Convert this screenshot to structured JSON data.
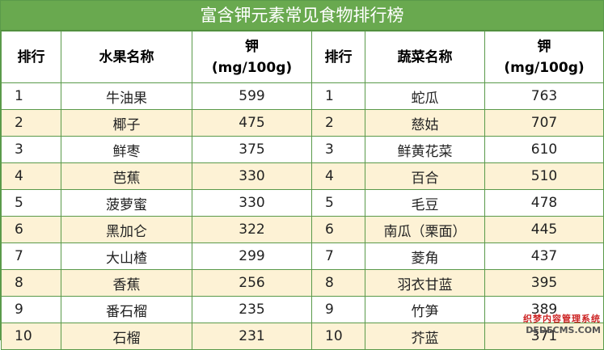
{
  "title": "富含钾元素常见食物排行榜",
  "headers": {
    "rank": "排行",
    "fruit_name": "水果名称",
    "potassium_line1": "钾",
    "potassium_line2": "(mg/100g)",
    "rank2": "排行",
    "veg_name": "蔬菜名称",
    "potassium2_line1": "钾",
    "potassium2_line2": "(mg/100g)"
  },
  "rows": [
    {
      "rank": "1",
      "fruit": "牛油果",
      "fruit_k": "599",
      "rank2": "1",
      "veg": "蛇瓜",
      "veg_k": "763"
    },
    {
      "rank": "2",
      "fruit": "椰子",
      "fruit_k": "475",
      "rank2": "2",
      "veg": "慈姑",
      "veg_k": "707"
    },
    {
      "rank": "3",
      "fruit": "鲜枣",
      "fruit_k": "375",
      "rank2": "3",
      "veg": "鲜黄花菜",
      "veg_k": "610"
    },
    {
      "rank": "4",
      "fruit": "芭蕉",
      "fruit_k": "330",
      "rank2": "4",
      "veg": "百合",
      "veg_k": "510"
    },
    {
      "rank": "5",
      "fruit": "菠萝蜜",
      "fruit_k": "330",
      "rank2": "5",
      "veg": "毛豆",
      "veg_k": "478"
    },
    {
      "rank": "6",
      "fruit": "黑加仑",
      "fruit_k": "322",
      "rank2": "6",
      "veg": "南瓜（栗面）",
      "veg_k": "445"
    },
    {
      "rank": "7",
      "fruit": "大山楂",
      "fruit_k": "299",
      "rank2": "7",
      "veg": "菱角",
      "veg_k": "437"
    },
    {
      "rank": "8",
      "fruit": "香蕉",
      "fruit_k": "256",
      "rank2": "8",
      "veg": "羽衣甘蓝",
      "veg_k": "395"
    },
    {
      "rank": "9",
      "fruit": "番石榴",
      "fruit_k": "235",
      "rank2": "9",
      "veg": "竹笋",
      "veg_k": "389"
    },
    {
      "rank": "10",
      "fruit": "石榴",
      "fruit_k": "231",
      "rank2": "10",
      "veg": "芥蓝",
      "veg_k": "371"
    }
  ],
  "watermark": {
    "line1": "织梦内容管理系统",
    "line2": "DEDECMS.COM"
  },
  "colors": {
    "title_bg": "#69a94f",
    "row_alt": "#fdf2d5",
    "border": "#5a9a4a"
  }
}
